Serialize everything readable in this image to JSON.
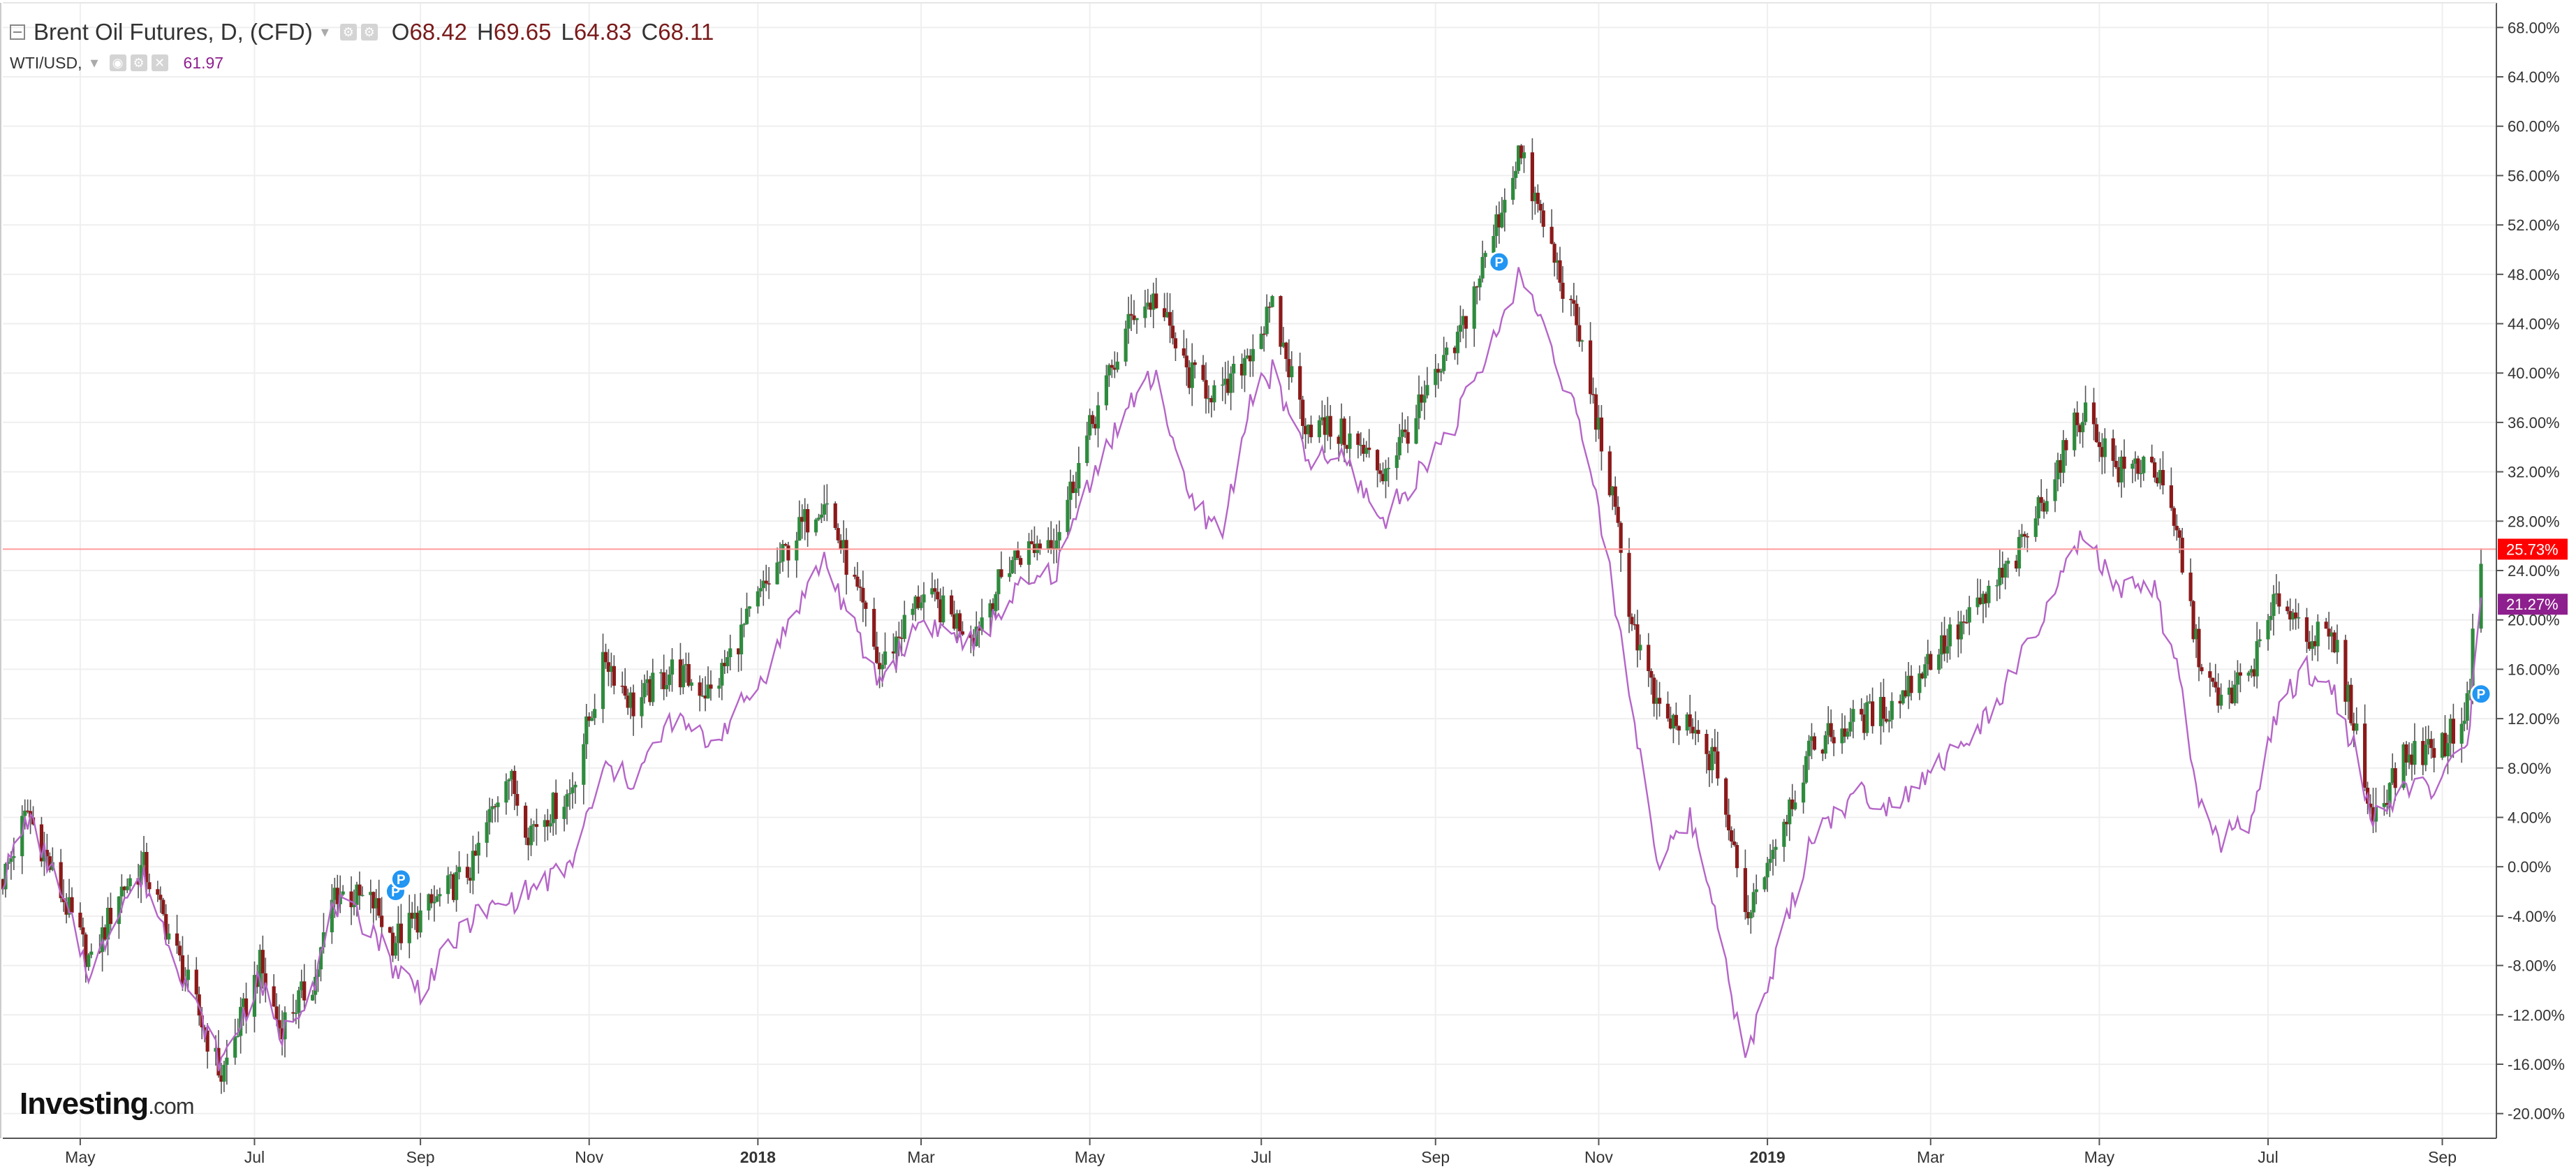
{
  "legend": {
    "main_symbol": "Brent Oil Futures, D, (CFD)",
    "ohlc": [
      {
        "k": "O",
        "v": "68.42"
      },
      {
        "k": "H",
        "v": "69.65"
      },
      {
        "k": "L",
        "v": "64.83"
      },
      {
        "k": "C",
        "v": "68.11"
      }
    ],
    "second_symbol": "WTI/USD,",
    "second_value": "61.97"
  },
  "logo": {
    "brand": "Investing",
    "domain": ".com"
  },
  "colors": {
    "up": "#2e8b3d",
    "down": "#8b1a1a",
    "wick": "#555555",
    "wti_line": "#b565c8",
    "current_line": "#ff9a9a",
    "brent_badge": "#ff0000",
    "wti_badge": "#8e1f8e",
    "grid": "#efefef",
    "marker": "#2196f3"
  },
  "chart_data": {
    "type": "line",
    "description_axis": "percent change",
    "y_unit": "%",
    "ylim": [
      -22,
      70
    ],
    "y_ticks": [
      "68.00%",
      "64.00%",
      "60.00%",
      "56.00%",
      "52.00%",
      "48.00%",
      "44.00%",
      "40.00%",
      "36.00%",
      "32.00%",
      "28.00%",
      "24.00%",
      "20.00%",
      "16.00%",
      "12.00%",
      "8.00%",
      "4.00%",
      "0.00%",
      "-4.00%",
      "-8.00%",
      "-12.00%",
      "-16.00%",
      "-20.00%"
    ],
    "y_tick_values": [
      68,
      64,
      60,
      56,
      52,
      48,
      44,
      40,
      36,
      32,
      28,
      24,
      20,
      16,
      12,
      8,
      4,
      0,
      -4,
      -8,
      -12,
      -16,
      -20
    ],
    "x_range": [
      "2017-04-03",
      "2019-09-16"
    ],
    "x_ticks": [
      {
        "label": "May",
        "date": "2017-05-01",
        "bold": false
      },
      {
        "label": "Jul",
        "date": "2017-07-03",
        "bold": false
      },
      {
        "label": "Sep",
        "date": "2017-09-01",
        "bold": false
      },
      {
        "label": "Nov",
        "date": "2017-11-01",
        "bold": false
      },
      {
        "label": "2018",
        "date": "2018-01-01",
        "bold": true
      },
      {
        "label": "Mar",
        "date": "2018-03-01",
        "bold": false
      },
      {
        "label": "May",
        "date": "2018-05-01",
        "bold": false
      },
      {
        "label": "Jul",
        "date": "2018-07-02",
        "bold": false
      },
      {
        "label": "Sep",
        "date": "2018-09-03",
        "bold": false
      },
      {
        "label": "Nov",
        "date": "2018-11-01",
        "bold": false
      },
      {
        "label": "2019",
        "date": "2019-01-01",
        "bold": true
      },
      {
        "label": "Mar",
        "date": "2019-03-01",
        "bold": false
      },
      {
        "label": "May",
        "date": "2019-05-01",
        "bold": false
      },
      {
        "label": "Jul",
        "date": "2019-07-01",
        "bold": false
      },
      {
        "label": "Sep",
        "date": "2019-09-02",
        "bold": false
      }
    ],
    "series": [
      {
        "name": "Brent Oil Futures, D, (CFD)",
        "style": "candlestick",
        "points": [
          {
            "date": "2017-04-03",
            "value": -1
          },
          {
            "date": "2017-04-12",
            "value": 4.5
          },
          {
            "date": "2017-04-20",
            "value": 0
          },
          {
            "date": "2017-05-05",
            "value": -8
          },
          {
            "date": "2017-05-15",
            "value": -2
          },
          {
            "date": "2017-05-24",
            "value": 0
          },
          {
            "date": "2017-06-13",
            "value": -12
          },
          {
            "date": "2017-06-21",
            "value": -17
          },
          {
            "date": "2017-07-05",
            "value": -8
          },
          {
            "date": "2017-07-12",
            "value": -13
          },
          {
            "date": "2017-07-25",
            "value": -9
          },
          {
            "date": "2017-08-01",
            "value": -2
          },
          {
            "date": "2017-08-15",
            "value": -3
          },
          {
            "date": "2017-08-22",
            "value": -6
          },
          {
            "date": "2017-09-01",
            "value": -4
          },
          {
            "date": "2017-09-20",
            "value": 0
          },
          {
            "date": "2017-10-02",
            "value": 8
          },
          {
            "date": "2017-10-10",
            "value": 3
          },
          {
            "date": "2017-10-25",
            "value": 6
          },
          {
            "date": "2017-11-07",
            "value": 17
          },
          {
            "date": "2017-11-17",
            "value": 13
          },
          {
            "date": "2017-12-01",
            "value": 16
          },
          {
            "date": "2017-12-15",
            "value": 14
          },
          {
            "date": "2018-01-02",
            "value": 22
          },
          {
            "date": "2018-01-15",
            "value": 27
          },
          {
            "date": "2018-01-25",
            "value": 30
          },
          {
            "date": "2018-02-09",
            "value": 20
          },
          {
            "date": "2018-02-14",
            "value": 16
          },
          {
            "date": "2018-03-01",
            "value": 22
          },
          {
            "date": "2018-03-20",
            "value": 19
          },
          {
            "date": "2018-04-03",
            "value": 25
          },
          {
            "date": "2018-04-19",
            "value": 27
          },
          {
            "date": "2018-05-02",
            "value": 36
          },
          {
            "date": "2018-05-17",
            "value": 45
          },
          {
            "date": "2018-05-25",
            "value": 46
          },
          {
            "date": "2018-06-05",
            "value": 40
          },
          {
            "date": "2018-06-18",
            "value": 38
          },
          {
            "date": "2018-06-28",
            "value": 42
          },
          {
            "date": "2018-07-06",
            "value": 45
          },
          {
            "date": "2018-07-18",
            "value": 36
          },
          {
            "date": "2018-08-01",
            "value": 35
          },
          {
            "date": "2018-08-15",
            "value": 32
          },
          {
            "date": "2018-08-28",
            "value": 37
          },
          {
            "date": "2018-09-10",
            "value": 42
          },
          {
            "date": "2018-09-25",
            "value": 52
          },
          {
            "date": "2018-10-03",
            "value": 58
          },
          {
            "date": "2018-10-12",
            "value": 52
          },
          {
            "date": "2018-10-25",
            "value": 43
          },
          {
            "date": "2018-11-05",
            "value": 31
          },
          {
            "date": "2018-11-13",
            "value": 20
          },
          {
            "date": "2018-11-23",
            "value": 12
          },
          {
            "date": "2018-12-04",
            "value": 11
          },
          {
            "date": "2018-12-14",
            "value": 8
          },
          {
            "date": "2018-12-24",
            "value": -4
          },
          {
            "date": "2019-01-07",
            "value": 4
          },
          {
            "date": "2019-01-18",
            "value": 10
          },
          {
            "date": "2019-02-04",
            "value": 12
          },
          {
            "date": "2019-02-15",
            "value": 13
          },
          {
            "date": "2019-03-01",
            "value": 17
          },
          {
            "date": "2019-03-15",
            "value": 20
          },
          {
            "date": "2019-04-01",
            "value": 25
          },
          {
            "date": "2019-04-15",
            "value": 32
          },
          {
            "date": "2019-04-25",
            "value": 37
          },
          {
            "date": "2019-05-08",
            "value": 32
          },
          {
            "date": "2019-05-20",
            "value": 33
          },
          {
            "date": "2019-05-30",
            "value": 26
          },
          {
            "date": "2019-06-05",
            "value": 18
          },
          {
            "date": "2019-06-13",
            "value": 13
          },
          {
            "date": "2019-06-25",
            "value": 16
          },
          {
            "date": "2019-07-05",
            "value": 22
          },
          {
            "date": "2019-07-15",
            "value": 19
          },
          {
            "date": "2019-07-25",
            "value": 18
          },
          {
            "date": "2019-08-02",
            "value": 11
          },
          {
            "date": "2019-08-07",
            "value": 4
          },
          {
            "date": "2019-08-20",
            "value": 9
          },
          {
            "date": "2019-09-03",
            "value": 10
          },
          {
            "date": "2019-09-11",
            "value": 13
          },
          {
            "date": "2019-09-16",
            "value": 25.73
          }
        ]
      },
      {
        "name": "WTI/USD",
        "style": "line",
        "points": [
          {
            "date": "2017-04-03",
            "value": -1
          },
          {
            "date": "2017-04-12",
            "value": 4
          },
          {
            "date": "2017-04-20",
            "value": 0
          },
          {
            "date": "2017-05-05",
            "value": -9
          },
          {
            "date": "2017-05-15",
            "value": -3
          },
          {
            "date": "2017-05-24",
            "value": -1
          },
          {
            "date": "2017-06-13",
            "value": -12
          },
          {
            "date": "2017-06-21",
            "value": -16
          },
          {
            "date": "2017-07-05",
            "value": -9
          },
          {
            "date": "2017-07-12",
            "value": -14
          },
          {
            "date": "2017-07-25",
            "value": -9
          },
          {
            "date": "2017-08-01",
            "value": -3
          },
          {
            "date": "2017-08-15",
            "value": -5
          },
          {
            "date": "2017-08-22",
            "value": -8
          },
          {
            "date": "2017-09-01",
            "value": -10
          },
          {
            "date": "2017-09-20",
            "value": -4
          },
          {
            "date": "2017-10-02",
            "value": -3
          },
          {
            "date": "2017-10-10",
            "value": -2
          },
          {
            "date": "2017-10-25",
            "value": 0
          },
          {
            "date": "2017-11-07",
            "value": 8
          },
          {
            "date": "2017-11-17",
            "value": 7
          },
          {
            "date": "2017-12-01",
            "value": 12
          },
          {
            "date": "2017-12-15",
            "value": 10
          },
          {
            "date": "2018-01-02",
            "value": 15
          },
          {
            "date": "2018-01-15",
            "value": 21
          },
          {
            "date": "2018-01-25",
            "value": 25
          },
          {
            "date": "2018-02-09",
            "value": 17
          },
          {
            "date": "2018-02-14",
            "value": 15
          },
          {
            "date": "2018-03-01",
            "value": 20
          },
          {
            "date": "2018-03-20",
            "value": 18
          },
          {
            "date": "2018-04-03",
            "value": 22
          },
          {
            "date": "2018-04-19",
            "value": 24
          },
          {
            "date": "2018-05-02",
            "value": 32
          },
          {
            "date": "2018-05-17",
            "value": 38
          },
          {
            "date": "2018-05-25",
            "value": 40
          },
          {
            "date": "2018-06-05",
            "value": 30
          },
          {
            "date": "2018-06-18",
            "value": 27
          },
          {
            "date": "2018-06-28",
            "value": 38
          },
          {
            "date": "2018-07-06",
            "value": 40
          },
          {
            "date": "2018-07-18",
            "value": 33
          },
          {
            "date": "2018-08-01",
            "value": 33
          },
          {
            "date": "2018-08-15",
            "value": 28
          },
          {
            "date": "2018-08-28",
            "value": 32
          },
          {
            "date": "2018-09-10",
            "value": 36
          },
          {
            "date": "2018-09-25",
            "value": 43
          },
          {
            "date": "2018-10-03",
            "value": 48
          },
          {
            "date": "2018-10-12",
            "value": 44
          },
          {
            "date": "2018-10-25",
            "value": 36
          },
          {
            "date": "2018-11-05",
            "value": 24
          },
          {
            "date": "2018-11-13",
            "value": 13
          },
          {
            "date": "2018-11-23",
            "value": 0
          },
          {
            "date": "2018-12-04",
            "value": 4
          },
          {
            "date": "2018-12-14",
            "value": -4
          },
          {
            "date": "2018-12-24",
            "value": -16
          },
          {
            "date": "2019-01-07",
            "value": -5
          },
          {
            "date": "2019-01-18",
            "value": 3
          },
          {
            "date": "2019-02-04",
            "value": 6
          },
          {
            "date": "2019-02-15",
            "value": 5
          },
          {
            "date": "2019-03-01",
            "value": 8
          },
          {
            "date": "2019-03-15",
            "value": 10
          },
          {
            "date": "2019-04-01",
            "value": 16
          },
          {
            "date": "2019-04-15",
            "value": 22
          },
          {
            "date": "2019-04-25",
            "value": 27
          },
          {
            "date": "2019-05-08",
            "value": 22
          },
          {
            "date": "2019-05-20",
            "value": 23
          },
          {
            "date": "2019-05-30",
            "value": 15
          },
          {
            "date": "2019-06-05",
            "value": 6
          },
          {
            "date": "2019-06-13",
            "value": 2
          },
          {
            "date": "2019-06-25",
            "value": 4
          },
          {
            "date": "2019-07-05",
            "value": 13
          },
          {
            "date": "2019-07-15",
            "value": 16
          },
          {
            "date": "2019-07-25",
            "value": 14
          },
          {
            "date": "2019-08-02",
            "value": 9
          },
          {
            "date": "2019-08-07",
            "value": 4
          },
          {
            "date": "2019-08-20",
            "value": 6
          },
          {
            "date": "2019-09-03",
            "value": 7
          },
          {
            "date": "2019-09-11",
            "value": 10
          },
          {
            "date": "2019-09-16",
            "value": 21.27
          }
        ]
      }
    ],
    "markers": [
      {
        "date": "2017-08-23",
        "value": -2,
        "label": "P"
      },
      {
        "date": "2017-08-25",
        "value": -1,
        "label": "P"
      },
      {
        "date": "2018-09-26",
        "value": 49,
        "label": "P"
      },
      {
        "date": "2019-09-16",
        "value": 14,
        "label": "P"
      }
    ],
    "last_values": [
      {
        "series": "Brent Oil Futures, D, (CFD)",
        "value": 25.73,
        "label": "25.73%"
      },
      {
        "series": "WTI/USD",
        "value": 21.27,
        "label": "21.27%"
      }
    ],
    "grid": true,
    "legend_position": "top-left"
  }
}
